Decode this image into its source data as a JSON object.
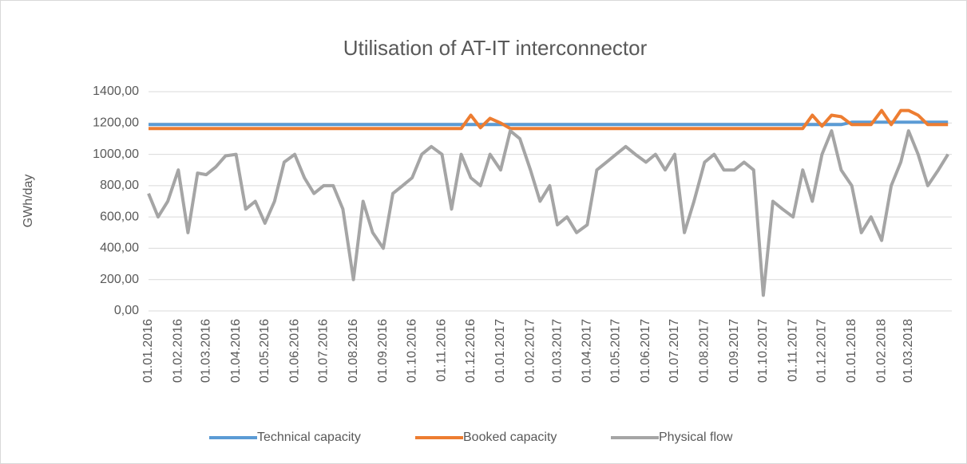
{
  "chart_data": {
    "type": "line",
    "title": "Utilisation of AT-IT interconnector",
    "y_label": "GWh/day",
    "x": [
      "01.01.2016",
      "11.01.2016",
      "21.01.2016",
      "01.02.2016",
      "11.02.2016",
      "21.02.2016",
      "01.03.2016",
      "11.03.2016",
      "21.03.2016",
      "01.04.2016",
      "11.04.2016",
      "21.04.2016",
      "01.05.2016",
      "11.05.2016",
      "21.05.2016",
      "01.06.2016",
      "11.06.2016",
      "21.06.2016",
      "01.07.2016",
      "11.07.2016",
      "21.07.2016",
      "01.08.2016",
      "11.08.2016",
      "21.08.2016",
      "01.09.2016",
      "11.09.2016",
      "21.09.2016",
      "01.10.2016",
      "11.10.2016",
      "21.10.2016",
      "01.11.2016",
      "11.11.2016",
      "21.11.2016",
      "01.12.2016",
      "11.12.2016",
      "21.12.2016",
      "01.01.2017",
      "11.01.2017",
      "21.01.2017",
      "01.02.2017",
      "11.02.2017",
      "21.02.2017",
      "01.03.2017",
      "11.03.2017",
      "21.03.2017",
      "01.04.2017",
      "11.04.2017",
      "21.04.2017",
      "01.05.2017",
      "11.05.2017",
      "21.05.2017",
      "01.06.2017",
      "11.06.2017",
      "21.06.2017",
      "01.07.2017",
      "11.07.2017",
      "21.07.2017",
      "01.08.2017",
      "11.08.2017",
      "21.08.2017",
      "01.09.2017",
      "11.09.2017",
      "21.09.2017",
      "01.10.2017",
      "11.10.2017",
      "21.10.2017",
      "01.11.2017",
      "11.11.2017",
      "21.11.2017",
      "01.12.2017",
      "11.12.2017",
      "21.12.2017",
      "01.01.2018",
      "11.01.2018",
      "21.01.2018",
      "01.02.2018",
      "11.02.2018",
      "21.02.2018",
      "01.03.2018",
      "11.03.2018",
      "21.03.2018",
      "01.04.2018",
      "11.04.2018"
    ],
    "series": [
      {
        "name": "Technical capacity",
        "color": "#5b9bd5",
        "values": [
          1190,
          1190,
          1190,
          1190,
          1190,
          1190,
          1190,
          1190,
          1190,
          1190,
          1190,
          1190,
          1190,
          1190,
          1190,
          1190,
          1190,
          1190,
          1190,
          1190,
          1190,
          1190,
          1190,
          1190,
          1190,
          1190,
          1190,
          1190,
          1190,
          1190,
          1190,
          1190,
          1190,
          1190,
          1190,
          1190,
          1190,
          1190,
          1190,
          1190,
          1190,
          1190,
          1190,
          1190,
          1190,
          1190,
          1190,
          1190,
          1190,
          1190,
          1190,
          1190,
          1190,
          1190,
          1190,
          1190,
          1190,
          1190,
          1190,
          1190,
          1190,
          1190,
          1190,
          1190,
          1190,
          1190,
          1190,
          1190,
          1190,
          1190,
          1190,
          1190,
          1205,
          1205,
          1205,
          1205,
          1205,
          1205,
          1205,
          1205,
          1205,
          1205,
          1205
        ]
      },
      {
        "name": "Booked capacity",
        "color": "#ed7d31",
        "values": [
          1165,
          1165,
          1165,
          1165,
          1165,
          1165,
          1165,
          1165,
          1165,
          1165,
          1165,
          1165,
          1165,
          1165,
          1165,
          1165,
          1165,
          1165,
          1165,
          1165,
          1165,
          1165,
          1165,
          1165,
          1165,
          1165,
          1165,
          1165,
          1165,
          1165,
          1165,
          1165,
          1165,
          1250,
          1170,
          1230,
          1200,
          1165,
          1165,
          1165,
          1165,
          1165,
          1165,
          1165,
          1165,
          1165,
          1165,
          1165,
          1165,
          1165,
          1165,
          1165,
          1165,
          1165,
          1165,
          1165,
          1165,
          1165,
          1165,
          1165,
          1165,
          1165,
          1165,
          1165,
          1165,
          1165,
          1165,
          1165,
          1250,
          1180,
          1250,
          1240,
          1190,
          1190,
          1190,
          1280,
          1190,
          1280,
          1280,
          1250,
          1190,
          1190,
          1190
        ]
      },
      {
        "name": "Physical flow",
        "color": "#a5a5a5",
        "values": [
          750,
          600,
          700,
          900,
          500,
          880,
          870,
          920,
          990,
          1000,
          650,
          700,
          560,
          700,
          950,
          1000,
          850,
          750,
          800,
          800,
          650,
          200,
          700,
          500,
          400,
          750,
          800,
          850,
          1000,
          1050,
          1000,
          650,
          1000,
          850,
          800,
          1000,
          900,
          1150,
          1100,
          900,
          700,
          800,
          550,
          600,
          500,
          550,
          900,
          950,
          1000,
          1050,
          1000,
          950,
          1000,
          900,
          1000,
          500,
          700,
          950,
          1000,
          900,
          900,
          950,
          900,
          100,
          700,
          650,
          600,
          900,
          700,
          1000,
          1150,
          900,
          800,
          500,
          600,
          450,
          800,
          950,
          1150,
          1000,
          800,
          900,
          1000
        ]
      }
    ],
    "xlim": [
      "01.01.2016",
      "15.04.2018"
    ],
    "xticks": [
      "01.01.2016",
      "01.02.2016",
      "01.03.2016",
      "01.04.2016",
      "01.05.2016",
      "01.06.2016",
      "01.07.2016",
      "01.08.2016",
      "01.09.2016",
      "01.10.2016",
      "01.11.2016",
      "01.12.2016",
      "01.01.2017",
      "01.02.2017",
      "01.03.2017",
      "01.04.2017",
      "01.05.2017",
      "01.06.2017",
      "01.07.2017",
      "01.08.2017",
      "01.09.2017",
      "01.10.2017",
      "01.11.2017",
      "01.12.2017",
      "01.01.2018",
      "01.02.2018",
      "01.03.2018"
    ],
    "ylim": [
      0,
      1400
    ],
    "yticks": [
      {
        "value": 0,
        "label": "0,00"
      },
      {
        "value": 200,
        "label": "200,00"
      },
      {
        "value": 400,
        "label": "400,00"
      },
      {
        "value": 600,
        "label": "600,00"
      },
      {
        "value": 800,
        "label": "800,00"
      },
      {
        "value": 1000,
        "label": "1000,00"
      },
      {
        "value": 1200,
        "label": "1200,00"
      },
      {
        "value": 1400,
        "label": "1400,00"
      }
    ],
    "grid": true,
    "legend": "bottom"
  }
}
